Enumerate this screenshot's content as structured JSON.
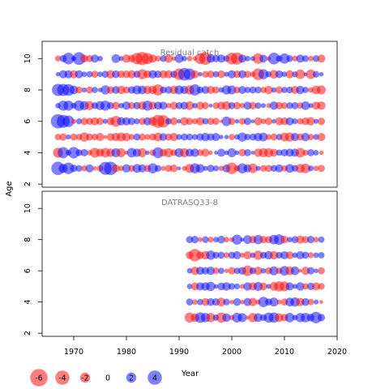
{
  "chart_data": [
    {
      "type": "scatter",
      "title": "Residual catch",
      "xlim": [
        1964,
        2020
      ],
      "ylim": [
        1.8,
        11.1
      ],
      "yticks": [
        "2",
        "4",
        "6",
        "8",
        "10"
      ],
      "ages": [
        3,
        4,
        5,
        6,
        7,
        8,
        9,
        10
      ],
      "years": [
        1967,
        1968,
        1969,
        1970,
        1971,
        1972,
        1973,
        1974,
        1975,
        1976,
        1977,
        1978,
        1979,
        1980,
        1981,
        1982,
        1983,
        1984,
        1985,
        1986,
        1987,
        1988,
        1989,
        1990,
        1991,
        1992,
        1993,
        1994,
        1995,
        1996,
        1997,
        1998,
        1999,
        2000,
        2001,
        2002,
        2003,
        2004,
        2005,
        2006,
        2007,
        2008,
        2009,
        2010,
        2011,
        2012,
        2013,
        2014,
        2015,
        2016,
        2017
      ],
      "residuals": [
        [
          3.5,
          1.6,
          2.6,
          1.1,
          0.9,
          -0.7,
          1.3,
          -0.4,
          -0.8,
          3.3,
          3.5,
          -1.2,
          -0.6,
          1.4,
          -0.9,
          1.5,
          1.3,
          -1.0,
          2.0,
          0.9,
          -0.5,
          -1.0,
          -1.2,
          0.3,
          -0.5,
          -1.6,
          2.0,
          1.5,
          0.5,
          1.1,
          0.7,
          -0.6,
          1.3,
          -2.6,
          -0.8,
          2.0,
          1.3,
          -1.8,
          0.5,
          -0.9,
          -1.0,
          0.9,
          1.3,
          -0.8,
          1.5,
          0.9,
          -1.6,
          -1.8,
          0.7,
          -0.6,
          -1.0
        ],
        [
          -2.0,
          2.5,
          0.6,
          2.6,
          0.9,
          1.1,
          -0.6,
          -1.9,
          -1.3,
          -1.8,
          -1.4,
          1.6,
          -1.6,
          -0.3,
          1.8,
          1.4,
          -1.6,
          0.4,
          -0.8,
          2.3,
          -1.2,
          -1.6,
          -0.9,
          1.6,
          -1.6,
          1.3,
          1.4,
          -0.9,
          -1.3,
          -0.4,
          0.3,
          1.3,
          0.4,
          1.6,
          0.4,
          -1.1,
          1.0,
          0.3,
          -1.4,
          -1.6,
          -1.6,
          -1.2,
          0.8,
          1.1,
          1.3,
          1.3,
          -1.8,
          -0.7,
          1.0,
          0.6,
          -0.4
        ],
        [
          -0.8,
          -1.1,
          0.5,
          -1.0,
          -0.8,
          -1.7,
          -1.0,
          -0.9,
          -1.3,
          -0.3,
          -1.2,
          -1.4,
          -1.6,
          -1.4,
          -0.7,
          1.0,
          -1.0,
          -0.7,
          -1.0,
          -1.5,
          1.2,
          -1.0,
          -1.4,
          0.7,
          1.0,
          0.9,
          0.7,
          1.1,
          1.4,
          1.1,
          1.3,
          0.4,
          0.4,
          -0.8,
          0.6,
          1.7,
          0.8,
          1.0,
          1.4,
          1.5,
          -0.7,
          -1.0,
          0.8,
          -1.5,
          -1.7,
          1.3,
          -1.0,
          1.4,
          -0.8,
          0.7,
          -1.3
        ],
        [
          4.0,
          3.3,
          2.6,
          -0.5,
          0.7,
          -1.1,
          -1.0,
          -1.3,
          -1.1,
          0.5,
          -1.2,
          -2.3,
          1.4,
          1.3,
          1.1,
          0.7,
          -1.0,
          1.3,
          -1.5,
          -3.3,
          -3.0,
          0.8,
          -1.2,
          0.4,
          -1.4,
          -1.0,
          -0.7,
          -1.3,
          0.8,
          -1.0,
          -1.0,
          -0.2,
          1.8,
          -1.0,
          0.4,
          -0.9,
          1.1,
          0.3,
          -1.3,
          -0.6,
          -1.1,
          0.4,
          -1.3,
          -1.2,
          1.3,
          0.7,
          -0.8,
          -1.2,
          -1.4,
          0.5,
          -1.1
        ],
        [
          0.6,
          2.0,
          2.0,
          0.7,
          2.2,
          1.6,
          -1.6,
          0.9,
          1.6,
          2.0,
          1.0,
          -1.2,
          0.6,
          1.4,
          -1.0,
          1.1,
          -1.4,
          2.0,
          -1.2,
          1.3,
          1.3,
          -0.6,
          -1.2,
          1.0,
          1.2,
          -1.5,
          0.6,
          -1.3,
          -1.0,
          0.3,
          -0.9,
          -1.3,
          -1.5,
          1.0,
          -1.1,
          -0.6,
          1.3,
          -1.1,
          0.8,
          0.5,
          -0.5,
          1.4,
          -1.1,
          -0.9,
          0.9,
          1.0,
          -0.8,
          1.5,
          0.5,
          -1.3,
          -1.4
        ],
        [
          2.9,
          2.9,
          2.7,
          1.5,
          -1.0,
          0.5,
          -1.0,
          0.8,
          0.4,
          1.7,
          -1.1,
          1.2,
          -1.4,
          -1.0,
          1.1,
          1.6,
          1.5,
          -1.4,
          -1.4,
          -2.4,
          0.9,
          1.1,
          -1.4,
          1.6,
          1.3,
          -1.7,
          2.5,
          0.9,
          1.2,
          -1.3,
          -1.0,
          0.6,
          1.7,
          1.6,
          -0.9,
          1.2,
          0.8,
          1.0,
          0.9,
          -0.8,
          -1.4,
          0.6,
          -1.1,
          0.8,
          0.9,
          -1.3,
          1.4,
          0.8,
          -0.6,
          -1.5,
          -1.6
        ],
        [
          0.4,
          1.3,
          1.3,
          -1.3,
          1.3,
          0.6,
          0.8,
          -1.0,
          0.6,
          1.0,
          -1.4,
          1.2,
          -1.1,
          -1.2,
          -1.3,
          1.0,
          -2.0,
          -1.2,
          1.4,
          1.1,
          -1.3,
          -1.3,
          1.0,
          -2.6,
          3.1,
          2.6,
          -1.3,
          0.4,
          -0.9,
          -1.1,
          0.8,
          -1.2,
          0.5,
          1.3,
          -1.1,
          1.3,
          -1.0,
          -0.6,
          -2.7,
          2.0,
          0.7,
          -1.5,
          1.2,
          0.6,
          -1.3,
          0.7,
          -1.8,
          0.3,
          -1.8,
          0.9,
          0.4
        ],
        [
          -0.7,
          1.0,
          2.7,
          0.5,
          3.2,
          -1.2,
          -1.0,
          1.3,
          0.6,
          0.0,
          0.0,
          1.5,
          0.5,
          -1.4,
          -1.1,
          -2.6,
          -3.4,
          -2.5,
          -1.3,
          -0.7,
          0.9,
          -1.4,
          -0.4,
          1.5,
          0.6,
          -0.6,
          -0.4,
          -2.3,
          -3.1,
          1.4,
          1.1,
          1.3,
          0.8,
          -2.7,
          -2.9,
          1.3,
          0.6,
          0.5,
          -2.2,
          1.2,
          -0.4,
          2.7,
          0.8,
          2.1,
          0.9,
          -0.7,
          1.3,
          0.9,
          -0.6,
          0.9,
          -1.3
        ]
      ]
    },
    {
      "type": "scatter",
      "title": "DATRASQ33-8",
      "xlim": [
        1964,
        2020
      ],
      "ylim": [
        1.8,
        11.1
      ],
      "xticks": [
        "1970",
        "1980",
        "1990",
        "2000",
        "2010",
        "2020"
      ],
      "yticks": [
        "2",
        "4",
        "6",
        "8",
        "10"
      ],
      "ages": [
        3,
        4,
        5,
        6,
        7,
        8
      ],
      "years": [
        1992,
        1993,
        1994,
        1995,
        1996,
        1997,
        1998,
        1999,
        2000,
        2001,
        2002,
        2003,
        2004,
        2005,
        2006,
        2007,
        2008,
        2009,
        2010,
        2011,
        2012,
        2013,
        2014,
        2015,
        2016,
        2017
      ],
      "residuals": [
        [
          -2.0,
          -1.4,
          2.2,
          1.7,
          -1.7,
          0.8,
          -2.1,
          1.4,
          -0.6,
          1.9,
          1.6,
          -0.3,
          -1.7,
          1.5,
          0.9,
          2.0,
          2.1,
          -1.5,
          -1.1,
          1.8,
          0.6,
          1.7,
          1.8,
          1.2,
          2.6,
          1.1
        ],
        [
          1.0,
          -0.6,
          0.8,
          -1.2,
          1.2,
          1.1,
          -1.5,
          0.9,
          -0.4,
          1.2,
          -0.4,
          1.3,
          -1.4,
          -0.5,
          2.1,
          1.0,
          1.6,
          -0.5,
          -1.0,
          1.5,
          1.7,
          -1.4,
          1.2,
          -0.8,
          0.5,
          -0.3
        ],
        [
          0.6,
          -1.2,
          1.3,
          1.4,
          1.7,
          0.4,
          1.2,
          1.4,
          0.9,
          0.7,
          -0.5,
          1.4,
          -1.3,
          1.6,
          -1.2,
          0.5,
          -1.5,
          -2.1,
          -1.9,
          1.3,
          0.5,
          1.4,
          -0.8,
          1.1,
          -1.3,
          -0.9
        ],
        [
          0.6,
          -1.4,
          1.3,
          1.1,
          1.4,
          -0.9,
          0.8,
          -0.4,
          -1.1,
          0.8,
          1.2,
          -2.2,
          0.9,
          -1.4,
          0.6,
          -1.0,
          1.6,
          -0.8,
          1.8,
          -1.5,
          1.5,
          -0.3,
          -1.3,
          1.1,
          0.4,
          -1.0
        ],
        [
          -1.2,
          -3.0,
          -1.2,
          -1.4,
          1.7,
          0.9,
          1.0,
          -0.7,
          1.0,
          1.3,
          -0.5,
          -1.3,
          0.6,
          -1.7,
          0.9,
          1.4,
          -1.4,
          0.9,
          1.3,
          -1.2,
          0.6,
          1.3,
          1.0,
          -0.7,
          0.6,
          0.8
        ],
        [
          1.0,
          1.1,
          -0.5,
          0.9,
          -0.7,
          0.6,
          1.2,
          -0.6,
          -0.5,
          2.0,
          0.3,
          1.5,
          -1.1,
          1.7,
          -1.1,
          -1.0,
          1.8,
          2.2,
          -1.2,
          0.6,
          1.0,
          -1.3,
          -1.0,
          1.1,
          -0.6,
          0.8
        ]
      ]
    }
  ],
  "axes": {
    "ylabel": "Age",
    "xlabel": "Year"
  },
  "legend": {
    "values": [
      -6,
      -4,
      -2,
      0,
      2,
      4
    ],
    "labels": [
      "-6",
      "-4",
      "-2",
      "0",
      "2",
      "4"
    ]
  },
  "colors": {
    "positive": "#0000ff",
    "negative": "#ff0000",
    "title": "#808080"
  }
}
